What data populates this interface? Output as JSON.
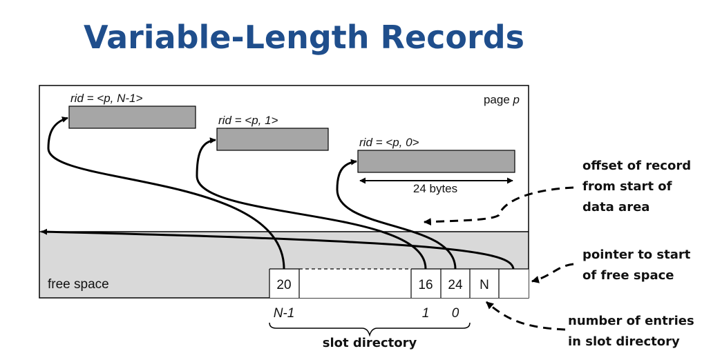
{
  "title": "Variable-Length Records",
  "page_label": {
    "prefix": "page",
    "var": "p"
  },
  "records": [
    {
      "rid": "rid = <p, N-1>"
    },
    {
      "rid": "rid = <p, 1>"
    },
    {
      "rid": "rid = <p, 0>"
    }
  ],
  "record_size_label": "24 bytes",
  "free_space_label": "free space",
  "slots": {
    "values": [
      "20",
      "16",
      "24"
    ],
    "count": "N",
    "indices": [
      "N-1",
      "1",
      "0"
    ]
  },
  "slot_directory_label": "slot directory",
  "annotations": {
    "offset": [
      "offset of record",
      "from start of",
      "data area"
    ],
    "pointer": [
      "pointer to start",
      "of free space"
    ],
    "entries": [
      "number of entries",
      "in slot directory"
    ]
  },
  "colors": {
    "title": "#1f4e8c",
    "record_fill": "#a6a6a6",
    "free_space_fill": "#d9d9d9"
  }
}
